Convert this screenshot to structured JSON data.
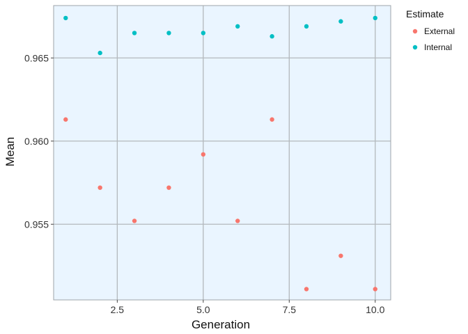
{
  "chart_data": {
    "type": "scatter",
    "title": "",
    "xlabel": "Generation",
    "ylabel": "Mean",
    "xlim": [
      0.65,
      10.45
    ],
    "ylim": [
      0.95045,
      0.96815
    ],
    "x_ticks": [
      2.5,
      5.0,
      7.5,
      10.0
    ],
    "x_tick_labels": [
      "2.5",
      "5.0",
      "7.5",
      "10.0"
    ],
    "y_ticks": [
      0.955,
      0.96,
      0.965
    ],
    "y_tick_labels": [
      "0.955",
      "0.960",
      "0.965"
    ],
    "grid": true,
    "legend": {
      "title": "Estimate",
      "position": "right"
    },
    "series": [
      {
        "name": "External",
        "color": "#F8766D",
        "x": [
          1,
          2,
          3,
          4,
          5,
          6,
          7,
          8,
          9,
          10
        ],
        "y": [
          0.9613,
          0.9572,
          0.9552,
          0.9572,
          0.9592,
          0.9552,
          0.9613,
          0.9511,
          0.9531,
          0.9511
        ]
      },
      {
        "name": "Internal",
        "color": "#00BFC4",
        "x": [
          1,
          2,
          3,
          4,
          5,
          6,
          7,
          8,
          9,
          10
        ],
        "y": [
          0.9674,
          0.9653,
          0.9665,
          0.9665,
          0.9665,
          0.9669,
          0.9663,
          0.9669,
          0.9672,
          0.9674
        ]
      }
    ]
  },
  "style": {
    "panel_bg": "#EAF5FF",
    "grid_color": "#B3B8BC",
    "panel_border": "#9EA4A8"
  }
}
